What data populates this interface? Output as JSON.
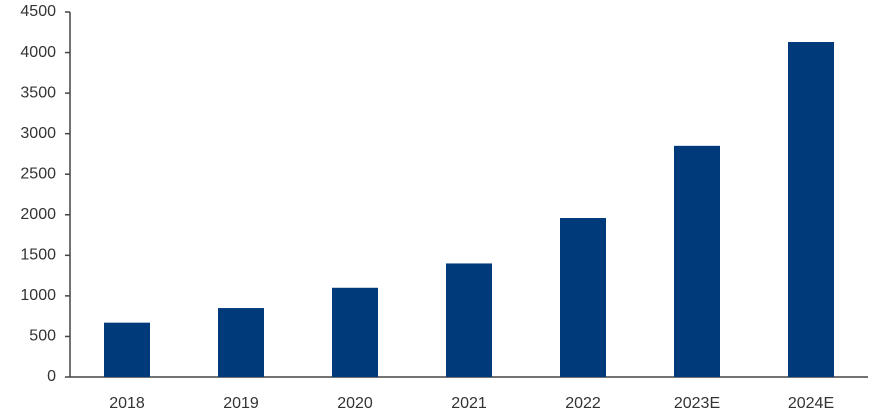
{
  "chart_data": {
    "type": "bar",
    "categories": [
      "2018",
      "2019",
      "2020",
      "2021",
      "2022",
      "2023E",
      "2024E"
    ],
    "values": [
      670,
      850,
      1100,
      1400,
      1960,
      2850,
      4130
    ],
    "color": "#003a7a",
    "ylim": [
      0,
      4500
    ],
    "yticks": [
      0,
      500,
      1000,
      1500,
      2000,
      2500,
      3000,
      3500,
      4000,
      4500
    ],
    "grid": false
  }
}
